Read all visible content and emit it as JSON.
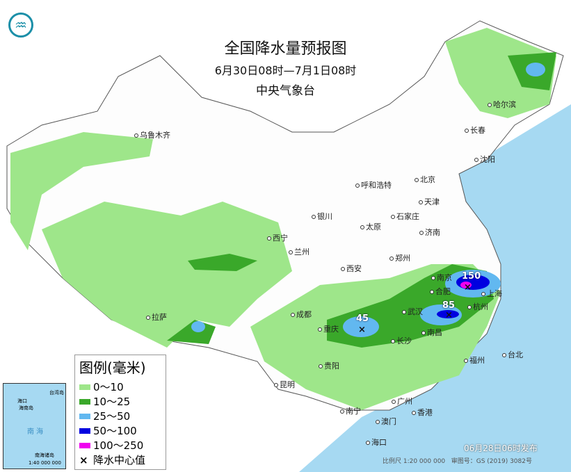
{
  "title": "全国降水量预报图",
  "period": "6月30日08时—7月1日08时",
  "issuer": "中央气象台",
  "legend": {
    "title": "图例(毫米)",
    "items": [
      {
        "label": "0～10",
        "color": "#9ee68a"
      },
      {
        "label": "10～25",
        "color": "#3aa82a"
      },
      {
        "label": "25～50",
        "color": "#62b8f0"
      },
      {
        "label": "50～100",
        "color": "#0000e0"
      },
      {
        "label": "100～250",
        "color": "#f000f0"
      }
    ],
    "center_label": "降水中心值"
  },
  "cities": [
    "乌鲁木齐",
    "拉萨",
    "西宁",
    "兰州",
    "银川",
    "呼和浩特",
    "北京",
    "天津",
    "石家庄",
    "太原",
    "济南",
    "郑州",
    "西安",
    "成都",
    "重庆",
    "贵阳",
    "昆明",
    "南宁",
    "广州",
    "澳门",
    "香港",
    "海口",
    "长沙",
    "武汉",
    "南昌",
    "福州",
    "台北",
    "杭州",
    "上海",
    "南京",
    "合肥",
    "沈阳",
    "长春",
    "哈尔滨"
  ],
  "precip_centers": [
    {
      "near": "重庆",
      "value": "45"
    },
    {
      "near": "南昌",
      "value": "85"
    },
    {
      "near": "南京",
      "value": "150"
    }
  ],
  "inset": {
    "sea": "南 海",
    "islands": "南海诸岛",
    "scale": "1:40 000 000",
    "labels": [
      "海口",
      "海南岛",
      "台湾岛"
    ]
  },
  "published": "06月28日06时发布",
  "scale": "比例尺 1:20 000 000",
  "map_number": "审图号：GS (2019) 3082号"
}
